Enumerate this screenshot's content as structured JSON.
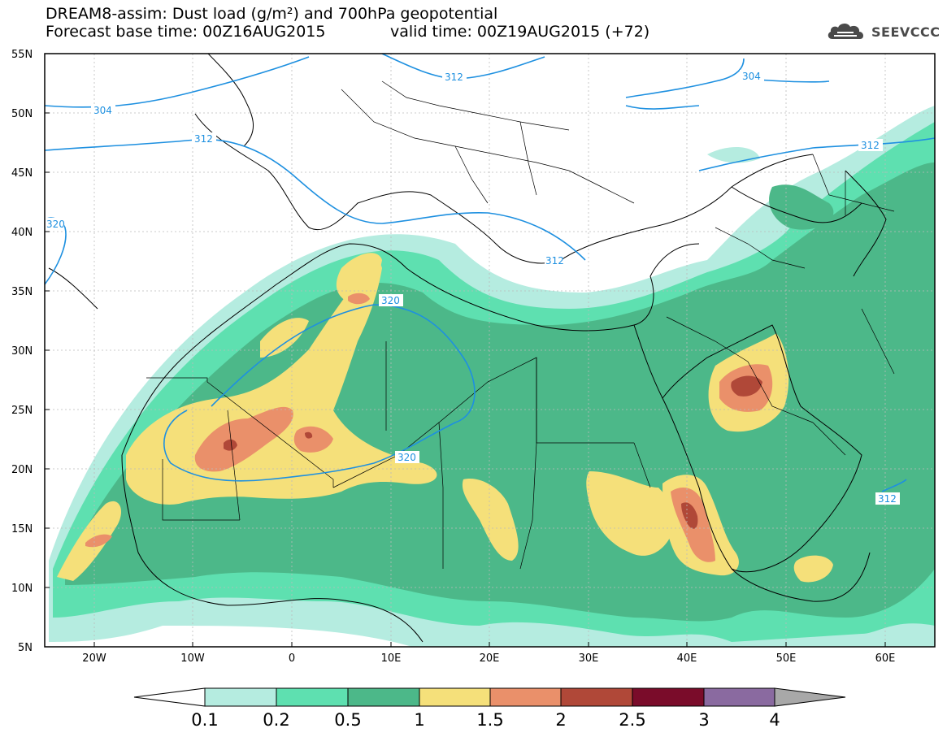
{
  "header": {
    "title": "DREAM8-assim: Dust load (g/m²) and 700hPa geopotential",
    "base_time": "Forecast base time: 00Z16AUG2015",
    "valid_time": "valid time: 00Z19AUG2015 (+72)"
  },
  "logo": {
    "text": "SEEVCCC",
    "icon": "cloud-icon"
  },
  "map": {
    "lon_range": [
      -25,
      65
    ],
    "lat_range": [
      5,
      55
    ],
    "lat_ticks": [
      "55N",
      "50N",
      "45N",
      "40N",
      "35N",
      "30N",
      "25N",
      "20N",
      "15N",
      "10N",
      "5N"
    ],
    "lon_ticks": [
      "20W",
      "10W",
      "0",
      "10E",
      "20E",
      "30E",
      "40E",
      "50E",
      "60E"
    ],
    "contour_labels": [
      "304",
      "312",
      "312",
      "304",
      "312",
      "320",
      "320",
      "320",
      "312",
      "312"
    ]
  },
  "colorbar": {
    "labels": [
      "0.1",
      "0.2",
      "0.5",
      "1",
      "1.5",
      "2",
      "2.5",
      "3",
      "4"
    ],
    "colors": [
      "#ffffff",
      "#b5ece0",
      "#5ee0b0",
      "#4cb889",
      "#f5e07a",
      "#ea906a",
      "#b04838",
      "#7a0c2a",
      "#8a6aa0",
      "#a8a8a8"
    ]
  }
}
